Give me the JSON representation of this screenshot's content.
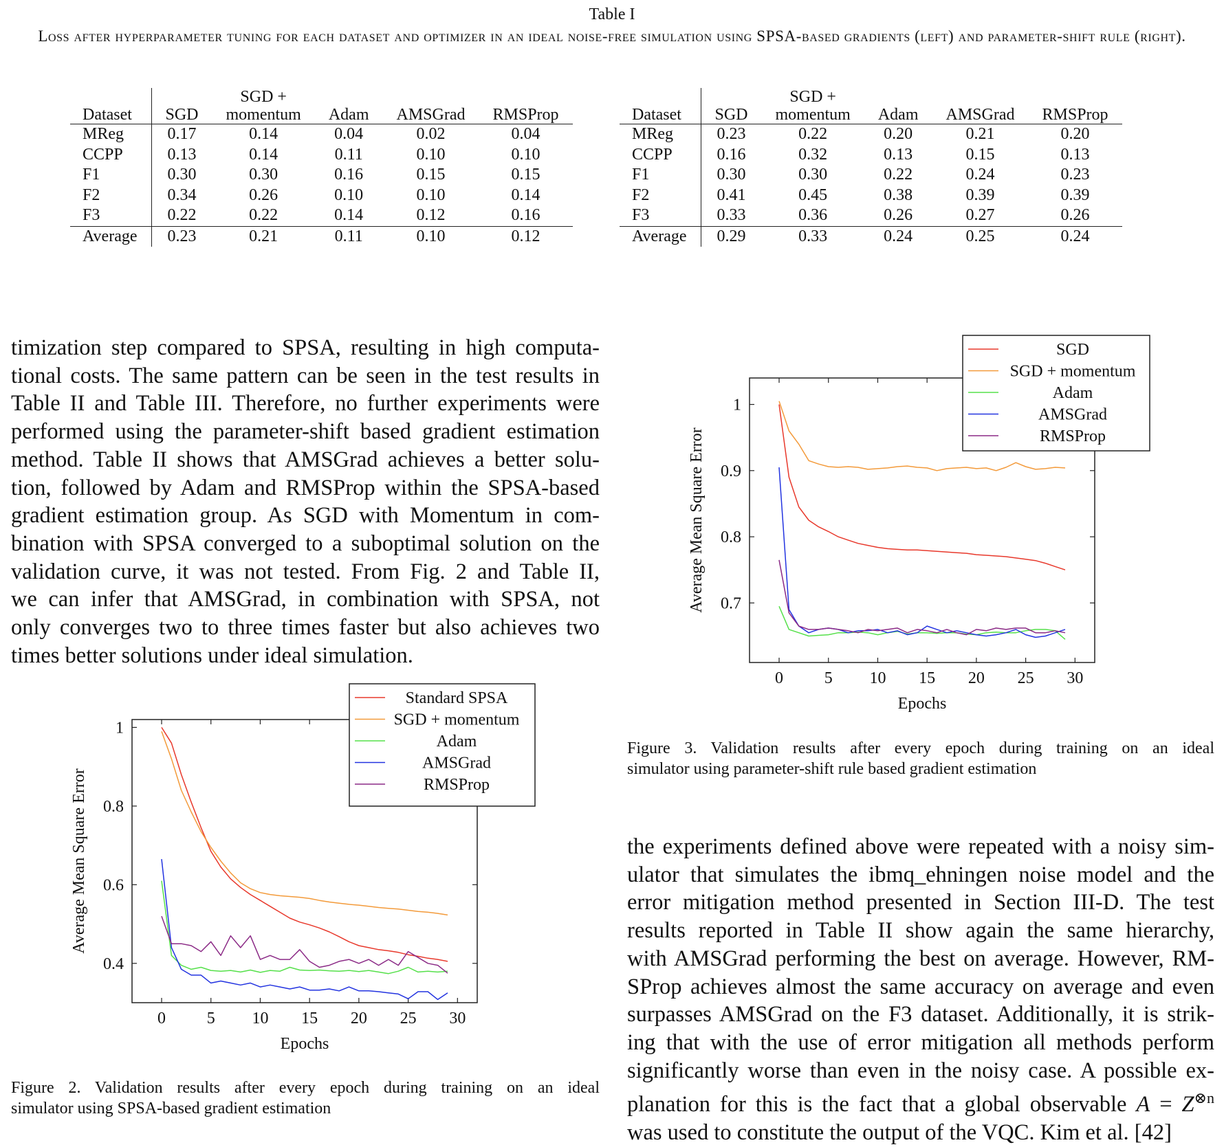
{
  "table": {
    "label": "Table I",
    "caption": "Loss after hyperparameter tuning for each dataset and optimizer in an ideal noise-free simulation using SPSA-based gradients (left) and parameter-shift rule (right).",
    "headers": [
      "Dataset",
      "SGD",
      "SGD +\nmomentum",
      "Adam",
      "AMSGrad",
      "RMSProp"
    ],
    "left": {
      "rows": [
        [
          "MReg",
          "0.17",
          "0.14",
          "0.04",
          "0.02",
          "0.04"
        ],
        [
          "CCPP",
          "0.13",
          "0.14",
          "0.11",
          "0.10",
          "0.10"
        ],
        [
          "F1",
          "0.30",
          "0.30",
          "0.16",
          "0.15",
          "0.15"
        ],
        [
          "F2",
          "0.34",
          "0.26",
          "0.10",
          "0.10",
          "0.14"
        ],
        [
          "F3",
          "0.22",
          "0.22",
          "0.14",
          "0.12",
          "0.16"
        ]
      ],
      "average": [
        "Average",
        "0.23",
        "0.21",
        "0.11",
        "0.10",
        "0.12"
      ]
    },
    "right": {
      "rows": [
        [
          "MReg",
          "0.23",
          "0.22",
          "0.20",
          "0.21",
          "0.20"
        ],
        [
          "CCPP",
          "0.16",
          "0.32",
          "0.13",
          "0.15",
          "0.13"
        ],
        [
          "F1",
          "0.30",
          "0.30",
          "0.22",
          "0.24",
          "0.23"
        ],
        [
          "F2",
          "0.41",
          "0.45",
          "0.38",
          "0.39",
          "0.39"
        ],
        [
          "F3",
          "0.33",
          "0.36",
          "0.26",
          "0.27",
          "0.26"
        ]
      ],
      "average": [
        "Average",
        "0.29",
        "0.33",
        "0.24",
        "0.25",
        "0.24"
      ]
    }
  },
  "left_paragraph_lines": [
    "timization step compared to SPSA, resulting in high computa-",
    "tional costs. The same pattern can be seen in the test results in",
    "Table II and Table III. Therefore, no further experiments were",
    "performed using the parameter-shift based gradient estimation",
    "method. Table II shows that AMSGrad achieves a better solu-",
    "tion, followed by Adam and RMSProp within the SPSA-based",
    "gradient estimation group. As SGD with Momentum in com-",
    "bination with SPSA converged to a suboptimal solution on the",
    "validation curve, it was not tested. From Fig. 2 and Table II,",
    "we can infer that AMSGrad, in combination with SPSA, not",
    "only converges two to three times faster but also achieves two",
    "times better solutions under ideal simulation."
  ],
  "right_paragraph_lines": [
    "the experiments defined above were repeated with a noisy sim-",
    "ulator that simulates the ibmq_ehningen noise model and the",
    "error mitigation method presented in Section III-D. The test",
    "results reported in Table II show again the same hierarchy,",
    "with AMSGrad performing the best on average. However, RM-",
    "SProp achieves almost the same accuracy on average and even",
    "surpasses AMSGrad on the F3 dataset. Additionally, it is strik-",
    "ing that with the use of error mitigation all methods perform",
    "significantly worse than even in the noisy case. A possible ex-",
    "planation for this is the fact that a global observable",
    "was used to constitute the output of the VQC. Kim et al. [42]"
  ],
  "math": {
    "A": "A",
    "eq": " = ",
    "Z": "Z",
    "sup": "⊗n"
  },
  "figure2": {
    "caption_lines": [
      "Figure 2.  Validation results after every epoch during training on an ideal",
      "simulator using SPSA-based gradient estimation"
    ]
  },
  "figure3": {
    "caption_lines": [
      "Figure 3.  Validation results after every epoch during training on an ideal",
      "simulator using parameter-shift rule based gradient estimation"
    ]
  },
  "chart_data": [
    {
      "type": "line",
      "figure": "Figure 2",
      "xlabel": "Epochs",
      "ylabel": "Average Mean Square Error",
      "xlim": [
        -3,
        32
      ],
      "ylim": [
        0.3,
        1.02
      ],
      "xticks": [
        0,
        5,
        10,
        15,
        20,
        25,
        30
      ],
      "yticks": [
        0.4,
        0.6,
        0.8,
        1
      ],
      "ytick_labels": [
        "0.4",
        "0.6",
        "0.8",
        "1"
      ],
      "legend_position": "top-right",
      "x": [
        0,
        1,
        2,
        3,
        4,
        5,
        6,
        7,
        8,
        9,
        10,
        11,
        12,
        13,
        14,
        15,
        16,
        17,
        18,
        19,
        20,
        21,
        22,
        23,
        24,
        25,
        26,
        27,
        28,
        29
      ],
      "series": [
        {
          "name": "Standard SPSA",
          "color": "#e8382b",
          "values": [
            1.0,
            0.96,
            0.88,
            0.81,
            0.745,
            0.685,
            0.645,
            0.615,
            0.593,
            0.575,
            0.56,
            0.545,
            0.53,
            0.515,
            0.505,
            0.498,
            0.49,
            0.48,
            0.468,
            0.455,
            0.445,
            0.44,
            0.435,
            0.432,
            0.428,
            0.422,
            0.418,
            0.413,
            0.41,
            0.405
          ]
        },
        {
          "name": "SGD + momentum",
          "color": "#f39a3a",
          "values": [
            0.99,
            0.92,
            0.84,
            0.785,
            0.735,
            0.695,
            0.66,
            0.63,
            0.605,
            0.59,
            0.58,
            0.575,
            0.572,
            0.57,
            0.568,
            0.565,
            0.56,
            0.556,
            0.553,
            0.55,
            0.548,
            0.545,
            0.542,
            0.54,
            0.538,
            0.535,
            0.532,
            0.53,
            0.527,
            0.523
          ]
        },
        {
          "name": "Adam",
          "color": "#55e04a",
          "values": [
            0.61,
            0.42,
            0.395,
            0.385,
            0.39,
            0.382,
            0.38,
            0.382,
            0.378,
            0.383,
            0.377,
            0.382,
            0.38,
            0.39,
            0.383,
            0.382,
            0.383,
            0.381,
            0.38,
            0.382,
            0.379,
            0.382,
            0.378,
            0.374,
            0.38,
            0.39,
            0.378,
            0.38,
            0.378,
            0.38
          ]
        },
        {
          "name": "AMSGrad",
          "color": "#2233e0",
          "values": [
            0.665,
            0.44,
            0.385,
            0.37,
            0.37,
            0.35,
            0.355,
            0.35,
            0.345,
            0.35,
            0.34,
            0.345,
            0.34,
            0.335,
            0.34,
            0.332,
            0.332,
            0.335,
            0.33,
            0.34,
            0.33,
            0.33,
            0.328,
            0.325,
            0.322,
            0.31,
            0.328,
            0.328,
            0.308,
            0.325
          ]
        },
        {
          "name": "RMSProp",
          "color": "#8b2a86",
          "values": [
            0.52,
            0.45,
            0.45,
            0.445,
            0.43,
            0.455,
            0.42,
            0.47,
            0.44,
            0.47,
            0.41,
            0.42,
            0.41,
            0.41,
            0.435,
            0.405,
            0.39,
            0.395,
            0.405,
            0.41,
            0.4,
            0.41,
            0.395,
            0.41,
            0.395,
            0.43,
            0.415,
            0.4,
            0.395,
            0.375
          ]
        }
      ]
    },
    {
      "type": "line",
      "figure": "Figure 3",
      "xlabel": "Epochs",
      "ylabel": "Average Mean Square Error",
      "xlim": [
        -3,
        32
      ],
      "ylim": [
        0.61,
        1.04
      ],
      "xticks": [
        0,
        5,
        10,
        15,
        20,
        25,
        30
      ],
      "yticks": [
        0.7,
        0.8,
        0.9,
        1
      ],
      "ytick_labels": [
        "0.7",
        "0.8",
        "0.9",
        "1"
      ],
      "legend_position": "top-right",
      "x": [
        0,
        1,
        2,
        3,
        4,
        5,
        6,
        7,
        8,
        9,
        10,
        11,
        12,
        13,
        14,
        15,
        16,
        17,
        18,
        19,
        20,
        21,
        22,
        23,
        24,
        25,
        26,
        27,
        28,
        29
      ],
      "series": [
        {
          "name": "SGD",
          "color": "#e8382b",
          "values": [
            1.0,
            0.89,
            0.845,
            0.825,
            0.815,
            0.808,
            0.8,
            0.795,
            0.79,
            0.787,
            0.784,
            0.782,
            0.781,
            0.78,
            0.78,
            0.779,
            0.778,
            0.777,
            0.776,
            0.775,
            0.773,
            0.772,
            0.771,
            0.77,
            0.768,
            0.766,
            0.764,
            0.76,
            0.755,
            0.75
          ]
        },
        {
          "name": "SGD + momentum",
          "color": "#f39a3a",
          "values": [
            1.005,
            0.96,
            0.94,
            0.915,
            0.91,
            0.906,
            0.905,
            0.906,
            0.905,
            0.902,
            0.903,
            0.904,
            0.906,
            0.907,
            0.905,
            0.904,
            0.9,
            0.903,
            0.904,
            0.905,
            0.903,
            0.904,
            0.9,
            0.905,
            0.912,
            0.906,
            0.902,
            0.903,
            0.905,
            0.904
          ]
        },
        {
          "name": "Adam",
          "color": "#55e04a",
          "values": [
            0.695,
            0.66,
            0.655,
            0.65,
            0.651,
            0.652,
            0.655,
            0.655,
            0.656,
            0.655,
            0.652,
            0.655,
            0.657,
            0.653,
            0.655,
            0.655,
            0.654,
            0.655,
            0.655,
            0.653,
            0.652,
            0.655,
            0.656,
            0.655,
            0.655,
            0.658,
            0.66,
            0.66,
            0.658,
            0.645
          ]
        },
        {
          "name": "AMSGrad",
          "color": "#2233e0",
          "values": [
            0.905,
            0.69,
            0.665,
            0.655,
            0.66,
            0.662,
            0.66,
            0.655,
            0.658,
            0.658,
            0.66,
            0.655,
            0.658,
            0.652,
            0.655,
            0.665,
            0.66,
            0.655,
            0.658,
            0.655,
            0.652,
            0.65,
            0.652,
            0.655,
            0.66,
            0.652,
            0.648,
            0.65,
            0.655,
            0.66
          ]
        },
        {
          "name": "RMSProp",
          "color": "#8b2a86",
          "values": [
            0.765,
            0.685,
            0.665,
            0.66,
            0.66,
            0.662,
            0.66,
            0.658,
            0.655,
            0.66,
            0.658,
            0.66,
            0.662,
            0.655,
            0.66,
            0.658,
            0.655,
            0.66,
            0.655,
            0.652,
            0.66,
            0.658,
            0.662,
            0.66,
            0.662,
            0.662,
            0.655,
            0.655,
            0.658,
            0.655
          ]
        }
      ]
    }
  ]
}
